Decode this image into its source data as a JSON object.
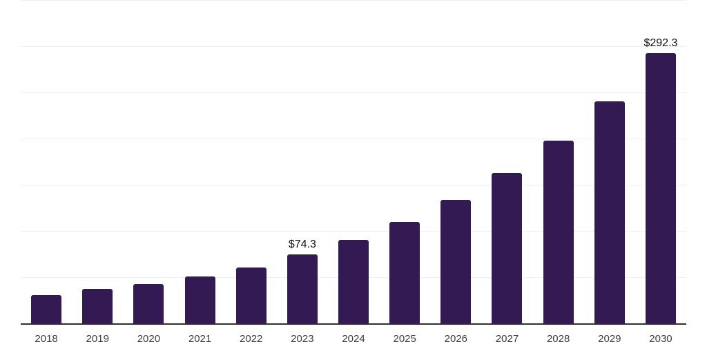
{
  "chart_data": {
    "type": "bar",
    "title": "",
    "categories": [
      "2018",
      "2019",
      "2020",
      "2021",
      "2022",
      "2023",
      "2024",
      "2025",
      "2026",
      "2027",
      "2028",
      "2029",
      "2030"
    ],
    "values": [
      30.3,
      37.4,
      42.8,
      50.6,
      60.7,
      74.3,
      90.4,
      109.9,
      133.6,
      162.4,
      197.5,
      240.2,
      292.3
    ],
    "annotations": [
      {
        "category": "2023",
        "text": "$74.3"
      },
      {
        "category": "2030",
        "text": "$292.3"
      }
    ],
    "xlabel": "",
    "ylabel": "",
    "ylim": [
      0,
      350
    ],
    "gridline_step": 50,
    "grid": true,
    "y_axis_labels_shown": false,
    "legend": false
  },
  "colors": {
    "background": "#ffffff",
    "bar": "#331a52",
    "axis": "#2f2f2f",
    "gridline": "#f1f1f1",
    "value_label": "#111111",
    "tick_label": "#3d3d3d"
  }
}
